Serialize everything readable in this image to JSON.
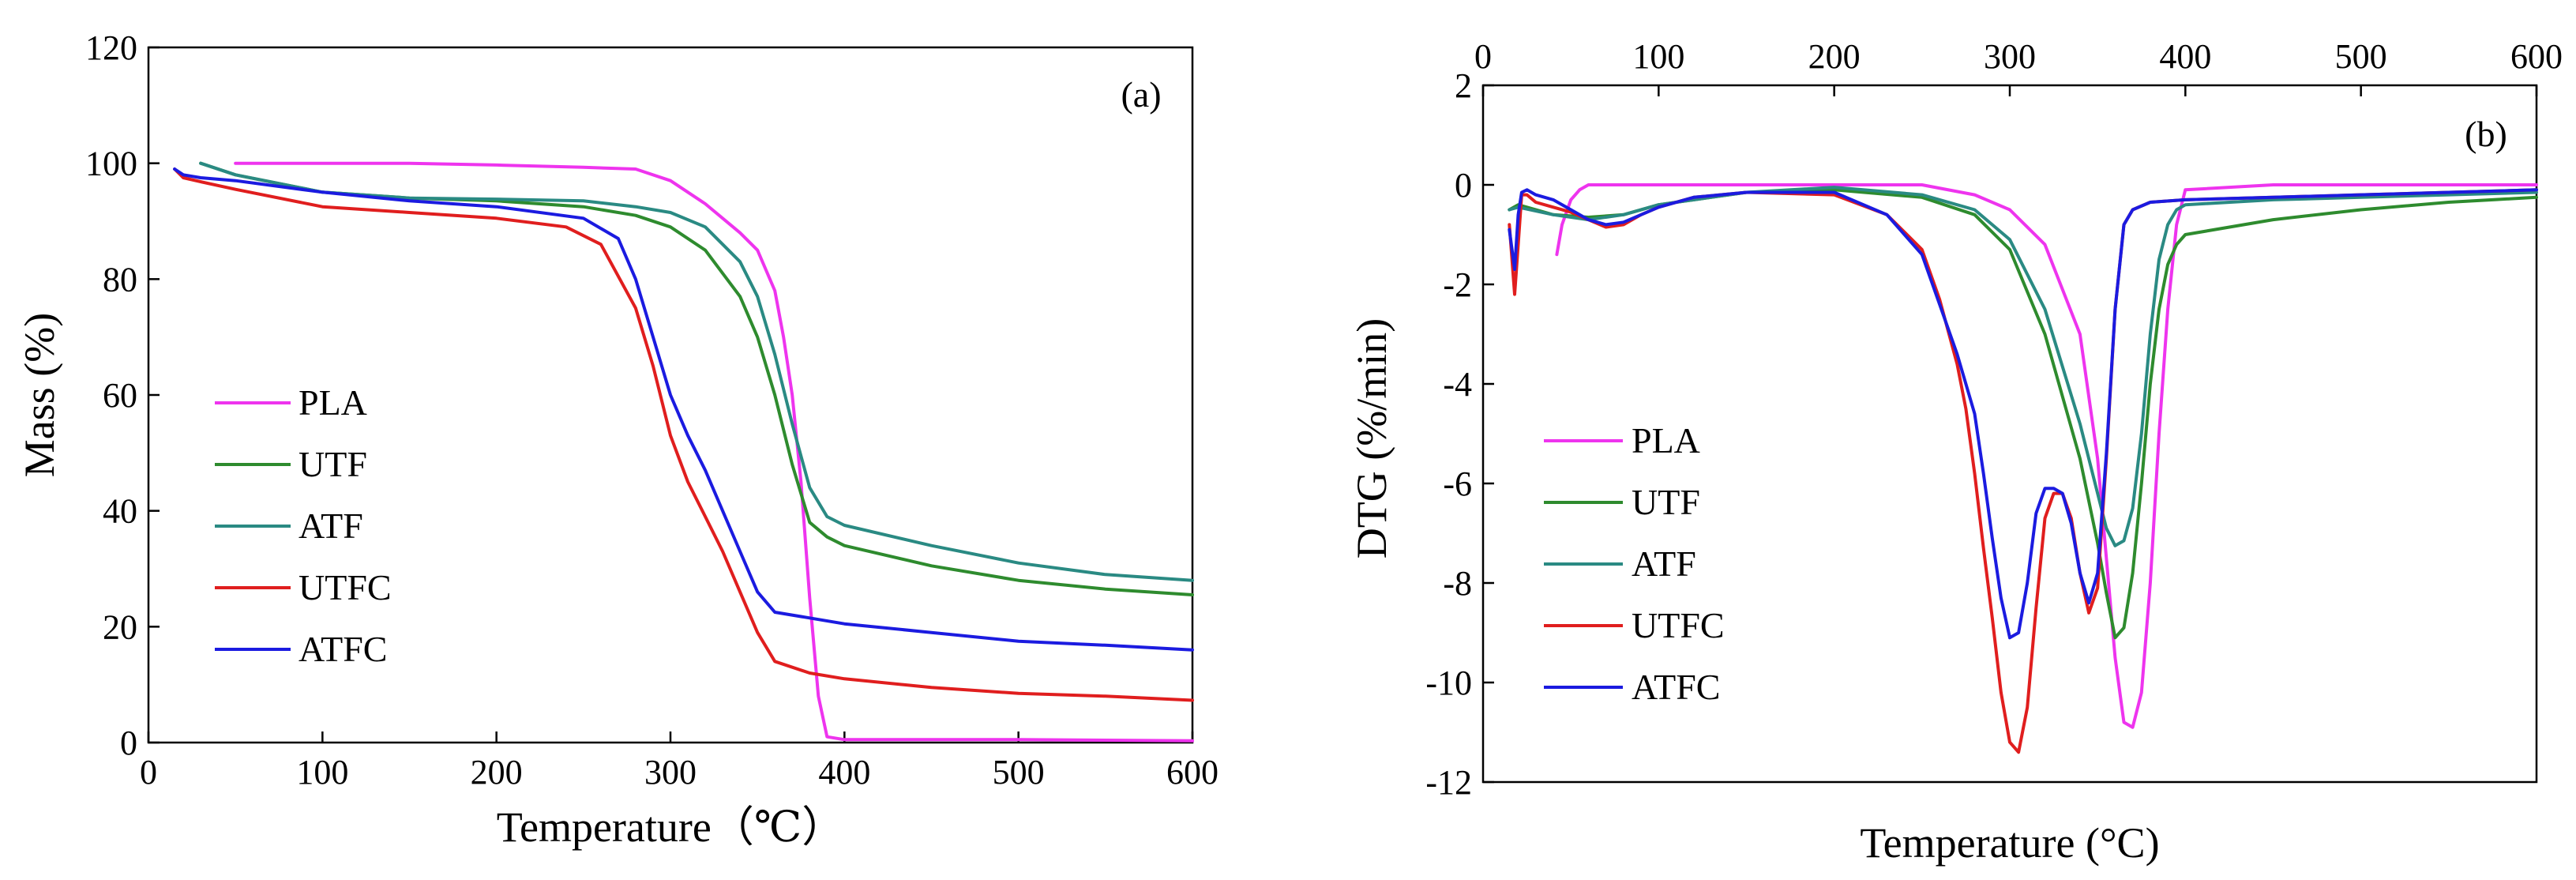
{
  "chart_data": [
    {
      "type": "line",
      "panel_label": "(a)",
      "xlabel": "Temperature（℃）",
      "ylabel": "Mass (%)",
      "xlim": [
        0,
        600
      ],
      "ylim": [
        0,
        120
      ],
      "xticks": [
        0,
        100,
        200,
        300,
        400,
        500,
        600
      ],
      "yticks": [
        0,
        20,
        40,
        60,
        80,
        100,
        120
      ],
      "grid": false,
      "legend_position": "left",
      "series": [
        {
          "name": "PLA",
          "color": "#ee34ee",
          "x": [
            50,
            100,
            150,
            200,
            250,
            280,
            300,
            320,
            340,
            350,
            360,
            365,
            370,
            375,
            380,
            385,
            390,
            400,
            500,
            600
          ],
          "y": [
            100,
            100,
            100,
            99.7,
            99.3,
            99,
            97,
            93,
            88,
            85,
            78,
            70,
            60,
            45,
            25,
            8,
            1,
            0.5,
            0.5,
            0.3
          ]
        },
        {
          "name": "UTF",
          "color": "#2e8b2e",
          "x": [
            30,
            50,
            100,
            150,
            200,
            250,
            280,
            300,
            320,
            340,
            350,
            360,
            370,
            380,
            390,
            400,
            450,
            500,
            550,
            600
          ],
          "y": [
            100,
            98,
            95,
            94,
            93.5,
            92.5,
            91,
            89,
            85,
            77,
            70,
            60,
            48,
            38,
            35.5,
            34,
            30.5,
            28,
            26.5,
            25.5
          ]
        },
        {
          "name": "ATF",
          "color": "#2a8a83",
          "x": [
            30,
            50,
            100,
            150,
            200,
            250,
            280,
            300,
            320,
            340,
            350,
            360,
            370,
            380,
            390,
            400,
            450,
            500,
            550,
            600
          ],
          "y": [
            100,
            98,
            95,
            94,
            93.8,
            93.5,
            92.5,
            91.5,
            89,
            83,
            77,
            67,
            55,
            44,
            39,
            37.5,
            34,
            31,
            29,
            28
          ]
        },
        {
          "name": "UTFC",
          "color": "#e01e1e",
          "x": [
            15,
            20,
            30,
            50,
            100,
            150,
            200,
            240,
            260,
            280,
            290,
            300,
            310,
            320,
            330,
            340,
            350,
            360,
            380,
            400,
            450,
            500,
            550,
            600
          ],
          "y": [
            99,
            97.5,
            96.8,
            95.5,
            92.5,
            91.5,
            90.5,
            89,
            86,
            75,
            65,
            53,
            45,
            39,
            33,
            26,
            19,
            14,
            12,
            11,
            9.5,
            8.5,
            8,
            7.3
          ]
        },
        {
          "name": "ATFC",
          "color": "#1b1be0",
          "x": [
            15,
            20,
            30,
            50,
            100,
            150,
            200,
            250,
            270,
            280,
            290,
            300,
            310,
            320,
            330,
            340,
            350,
            360,
            380,
            400,
            450,
            500,
            550,
            600
          ],
          "y": [
            99,
            98,
            97.5,
            97,
            95,
            93.5,
            92.5,
            90.5,
            87,
            80,
            70,
            60,
            53,
            47,
            40,
            33,
            26,
            22.5,
            21.5,
            20.5,
            19,
            17.5,
            16.8,
            16
          ]
        }
      ]
    },
    {
      "type": "line",
      "panel_label": "(b)",
      "xlabel": "Temperature (°C)",
      "ylabel": "DTG (%/min)",
      "xlim": [
        0,
        600
      ],
      "ylim": [
        -12,
        2
      ],
      "xticks": [
        0,
        100,
        200,
        300,
        400,
        500,
        600
      ],
      "yticks": [
        2,
        0,
        -2,
        -4,
        -6,
        -8,
        -10,
        -12
      ],
      "x_axis_position": "top",
      "grid": false,
      "legend_position": "lower-left",
      "series": [
        {
          "name": "PLA",
          "color": "#ee34ee",
          "x": [
            42,
            45,
            50,
            55,
            60,
            100,
            200,
            250,
            280,
            300,
            320,
            340,
            350,
            355,
            360,
            365,
            370,
            375,
            380,
            385,
            390,
            395,
            400,
            450,
            500,
            550,
            600
          ],
          "y": [
            -1.4,
            -0.8,
            -0.3,
            -0.1,
            0,
            0,
            0,
            0,
            -0.2,
            -0.5,
            -1.2,
            -3,
            -5.5,
            -7.5,
            -9.5,
            -10.8,
            -10.9,
            -10.2,
            -8,
            -5,
            -2.5,
            -0.8,
            -0.1,
            0,
            0,
            0,
            0
          ]
        },
        {
          "name": "UTF",
          "color": "#2e8b2e",
          "x": [
            15,
            20,
            40,
            60,
            80,
            100,
            150,
            200,
            250,
            280,
            300,
            320,
            340,
            350,
            355,
            360,
            365,
            370,
            375,
            380,
            385,
            390,
            395,
            400,
            450,
            500,
            550,
            600
          ],
          "y": [
            -0.5,
            -0.4,
            -0.6,
            -0.65,
            -0.6,
            -0.4,
            -0.15,
            -0.1,
            -0.25,
            -0.6,
            -1.3,
            -3,
            -5.5,
            -7.2,
            -8.2,
            -9.1,
            -8.9,
            -7.8,
            -6,
            -4,
            -2.5,
            -1.6,
            -1.2,
            -1,
            -0.7,
            -0.5,
            -0.35,
            -0.25
          ]
        },
        {
          "name": "ATF",
          "color": "#2a8a83",
          "x": [
            15,
            20,
            40,
            60,
            80,
            100,
            150,
            200,
            250,
            280,
            300,
            320,
            340,
            350,
            355,
            360,
            365,
            370,
            375,
            380,
            385,
            390,
            395,
            400,
            450,
            500,
            550,
            600
          ],
          "y": [
            -0.5,
            -0.45,
            -0.6,
            -0.7,
            -0.6,
            -0.4,
            -0.15,
            -0.05,
            -0.2,
            -0.5,
            -1.1,
            -2.5,
            -4.8,
            -6.2,
            -6.9,
            -7.25,
            -7.15,
            -6.5,
            -5,
            -3,
            -1.5,
            -0.8,
            -0.5,
            -0.4,
            -0.3,
            -0.25,
            -0.2,
            -0.15
          ]
        },
        {
          "name": "UTFC",
          "color": "#e01e1e",
          "x": [
            15,
            18,
            20,
            22,
            25,
            30,
            40,
            50,
            60,
            70,
            80,
            90,
            100,
            120,
            150,
            200,
            230,
            250,
            260,
            270,
            275,
            280,
            285,
            290,
            295,
            300,
            305,
            310,
            315,
            320,
            325,
            330,
            335,
            340,
            345,
            350,
            355,
            360,
            365,
            370,
            380,
            400,
            450,
            500,
            550,
            600
          ],
          "y": [
            -0.8,
            -2.2,
            -1.2,
            -0.2,
            -0.2,
            -0.35,
            -0.45,
            -0.55,
            -0.7,
            -0.85,
            -0.8,
            -0.6,
            -0.45,
            -0.25,
            -0.15,
            -0.2,
            -0.6,
            -1.3,
            -2.3,
            -3.6,
            -4.5,
            -5.8,
            -7.3,
            -8.7,
            -10.2,
            -11.2,
            -11.4,
            -10.5,
            -8.5,
            -6.7,
            -6.2,
            -6.2,
            -6.7,
            -7.8,
            -8.6,
            -8.1,
            -5.5,
            -2.5,
            -0.8,
            -0.5,
            -0.35,
            -0.3,
            -0.25,
            -0.2,
            -0.15,
            -0.1
          ]
        },
        {
          "name": "ATFC",
          "color": "#1b1be0",
          "x": [
            15,
            18,
            20,
            22,
            25,
            30,
            40,
            50,
            60,
            70,
            80,
            90,
            100,
            120,
            150,
            200,
            230,
            250,
            260,
            270,
            280,
            285,
            290,
            295,
            300,
            305,
            310,
            315,
            320,
            325,
            330,
            335,
            340,
            345,
            350,
            355,
            360,
            365,
            370,
            380,
            400,
            450,
            500,
            550,
            600
          ],
          "y": [
            -0.9,
            -1.7,
            -0.6,
            -0.15,
            -0.1,
            -0.2,
            -0.3,
            -0.5,
            -0.7,
            -0.8,
            -0.75,
            -0.6,
            -0.45,
            -0.25,
            -0.15,
            -0.15,
            -0.6,
            -1.4,
            -2.4,
            -3.4,
            -4.6,
            -5.8,
            -7.1,
            -8.3,
            -9.1,
            -9,
            -8,
            -6.6,
            -6.1,
            -6.1,
            -6.2,
            -6.8,
            -7.8,
            -8.4,
            -7.8,
            -5.4,
            -2.5,
            -0.8,
            -0.5,
            -0.35,
            -0.3,
            -0.25,
            -0.2,
            -0.15,
            -0.1
          ]
        }
      ]
    }
  ]
}
